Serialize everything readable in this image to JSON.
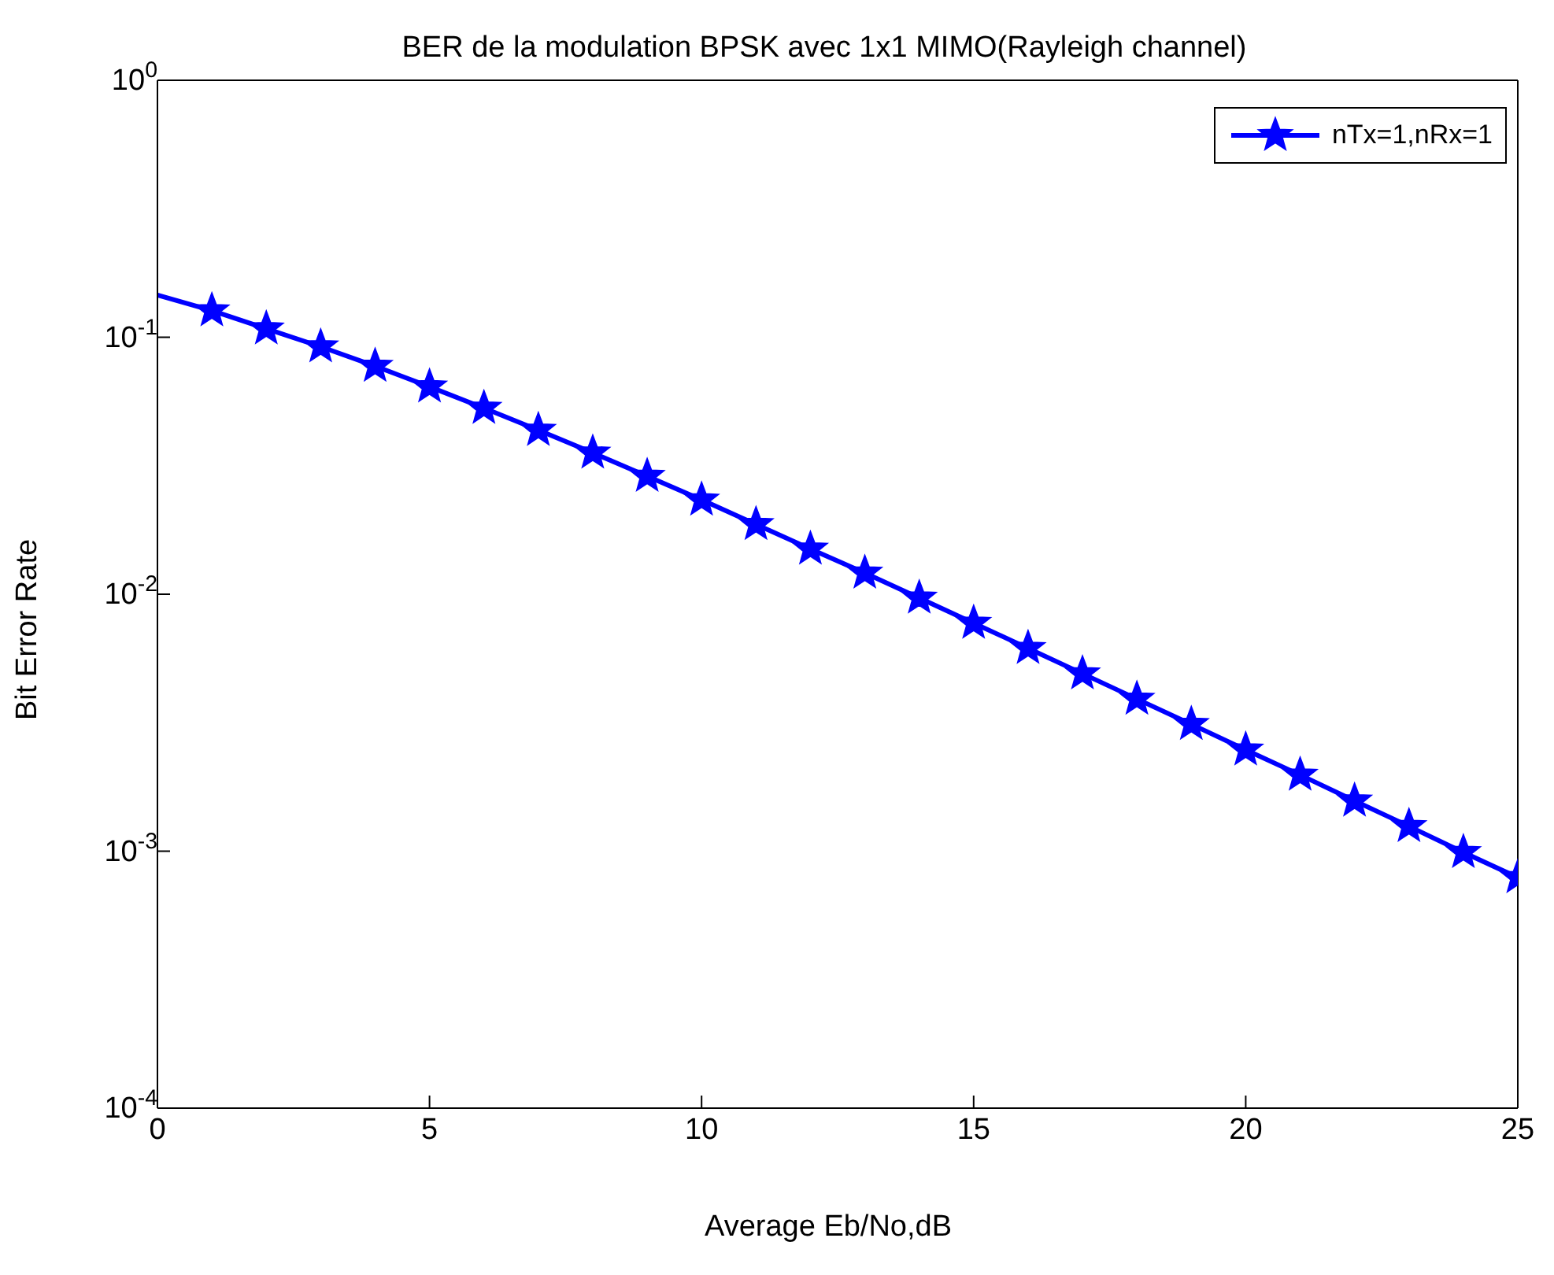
{
  "chart_data": {
    "type": "line",
    "title": "BER de la modulation BPSK avec 1x1 MIMO(Rayleigh channel)",
    "xlabel": "Average Eb/No,dB",
    "ylabel": "Bit Error Rate",
    "x": [
      0,
      1,
      2,
      3,
      4,
      5,
      6,
      7,
      8,
      9,
      10,
      11,
      12,
      13,
      14,
      15,
      16,
      17,
      18,
      19,
      20,
      21,
      22,
      23,
      24,
      25
    ],
    "series": [
      {
        "name": "nTx=1,nRx=1",
        "color": "#0000ff",
        "values": [
          0.146,
          0.127,
          0.108,
          0.0919,
          0.0772,
          0.0642,
          0.053,
          0.0435,
          0.0355,
          0.0288,
          0.0233,
          0.0187,
          0.015,
          0.0121,
          0.00967,
          0.00772,
          0.00616,
          0.00491,
          0.00391,
          0.00312,
          0.00248,
          0.00198,
          0.00157,
          0.00125,
          0.00099,
          0.00079
        ]
      }
    ],
    "xlim": [
      0,
      25
    ],
    "xticks": [
      0,
      5,
      10,
      15,
      20,
      25
    ],
    "ylim": [
      0.0001,
      1
    ],
    "yticks": [
      {
        "value": 0.0001,
        "label": "10$^{-4}$"
      },
      {
        "value": 0.001,
        "label": "10$^{-3}$"
      },
      {
        "value": 0.01,
        "label": "10$^{-2}$"
      },
      {
        "value": 0.1,
        "label": "10$^{-1}$"
      },
      {
        "value": 1,
        "label": "10$^{0}$"
      }
    ],
    "log": true,
    "grid": false,
    "legend": "top right",
    "marker": "star",
    "line_style": "solid"
  }
}
